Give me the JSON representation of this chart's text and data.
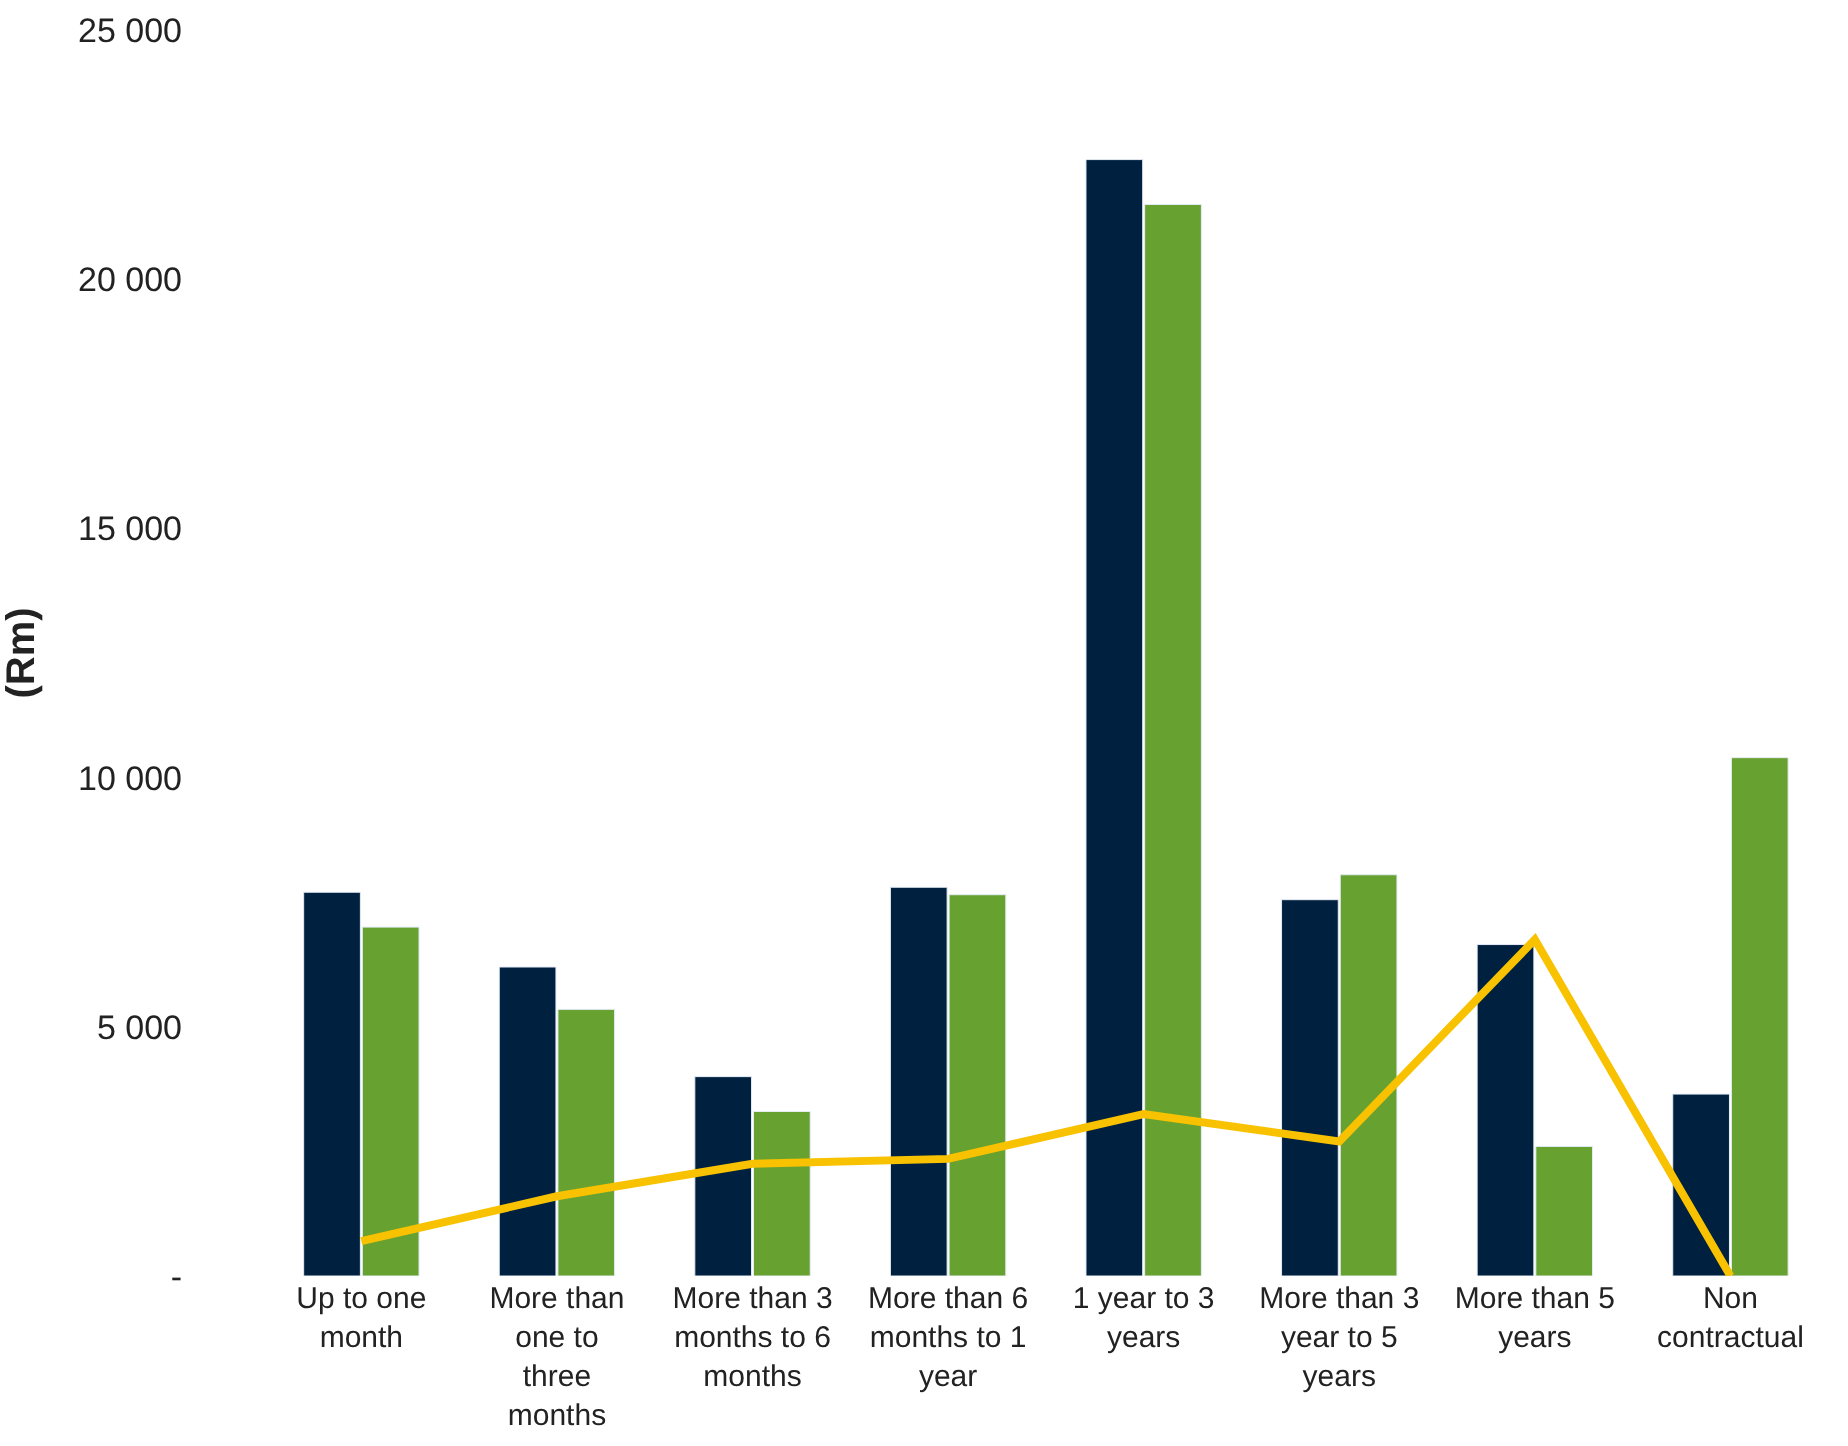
{
  "chart_data": {
    "type": "bar",
    "ylabel": "(Rm)",
    "categories": [
      "Up to one month",
      "More than one to three months",
      "More than 3 months to 6 months",
      "More than 6 months to 1 year",
      "1 year to 3 years",
      "More than 3 year to 5 years",
      "More than 5 years",
      "Non contractual"
    ],
    "series": [
      {
        "color": "#00203f",
        "values": [
          7700,
          6200,
          4000,
          7800,
          22400,
          7550,
          6650,
          3650
        ]
      },
      {
        "color": "#67a12f",
        "values": [
          7000,
          5350,
          3300,
          7650,
          21500,
          8050,
          2600,
          10400
        ]
      },
      {
        "type": "line",
        "color": "#f8c200",
        "values": [
          700,
          1600,
          2250,
          2350,
          3250,
          2700,
          6750,
          0
        ]
      }
    ],
    "ylim": [
      0,
      25000
    ],
    "yticks": [
      {
        "value": 0,
        "label": "-"
      },
      {
        "value": 5000,
        "label": "5 000"
      },
      {
        "value": 10000,
        "label": "10 000"
      },
      {
        "value": 15000,
        "label": "15 000"
      },
      {
        "value": 20000,
        "label": "20 000"
      },
      {
        "value": 25000,
        "label": "25 000"
      }
    ],
    "marker": "none"
  }
}
